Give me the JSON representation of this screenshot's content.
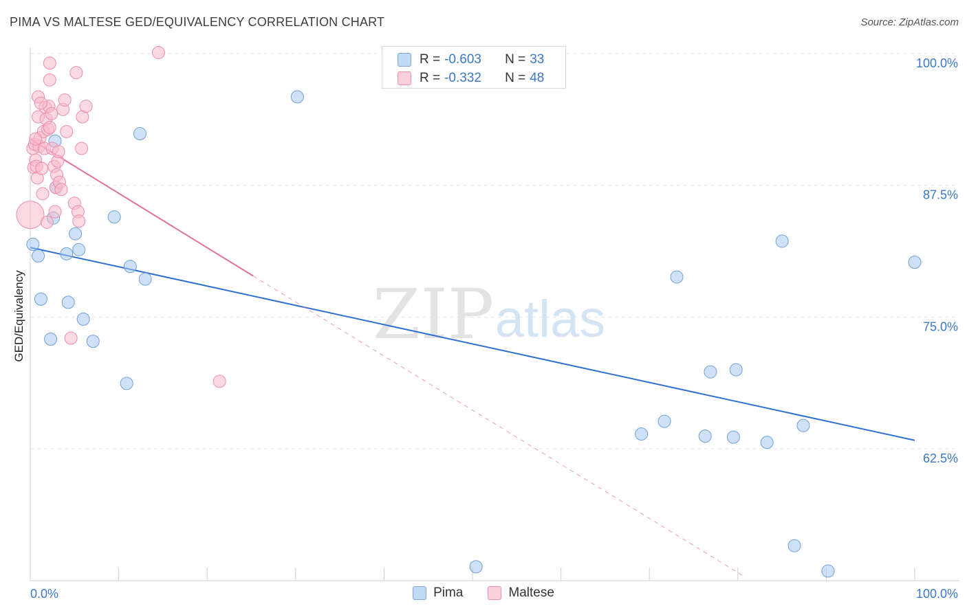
{
  "title": "PIMA VS MALTESE GED/EQUIVALENCY CORRELATION CHART",
  "source": "Source: ZipAtlas.com",
  "watermark": {
    "zip": "ZIP",
    "atlas": "atlas"
  },
  "stats": [
    {
      "r_label": "R = ",
      "r_value": "-0.603",
      "n_label": "N = ",
      "n_value": "33",
      "color": "#a8c8f0",
      "border": "#7aa6dd"
    },
    {
      "r_label": "R = ",
      "r_value": "-0.332",
      "n_label": "N = ",
      "n_value": "48",
      "color": "#f7b9cc",
      "border": "#ee8fac"
    }
  ],
  "legend": [
    {
      "label": "Pima",
      "color": "#a8c8f0",
      "border": "#7aa6dd"
    },
    {
      "label": "Maltese",
      "color": "#f7b9cc",
      "border": "#ee8fac"
    }
  ],
  "chart_data": {
    "type": "scatter",
    "title": "PIMA VS MALTESE GED/EQUIVALENCY CORRELATION CHART",
    "xlabel": "",
    "ylabel": "GED/Equivalency",
    "xlim": [
      0,
      100
    ],
    "ylim": [
      50,
      101.5
    ],
    "x_tick_labels": [
      "0.0%",
      "100.0%"
    ],
    "y_ticks": [
      62.5,
      75.0,
      87.5,
      100.0
    ],
    "y_tick_labels": [
      "62.5%",
      "75.0%",
      "87.5%",
      "100.0%"
    ],
    "grid": true,
    "legend_position": "bottom",
    "series": [
      {
        "name": "Pima",
        "color": "#a8c8f0",
        "stroke": "#6f9fd8",
        "line_color": "#2e6fd0",
        "trend": {
          "x": [
            0,
            100
          ],
          "y": [
            81.6,
            63.3
          ]
        },
        "points": [
          [
            0.3,
            81.9
          ],
          [
            0.9,
            80.8
          ],
          [
            1.2,
            76.7
          ],
          [
            2.3,
            72.9
          ],
          [
            2.6,
            84.4
          ],
          [
            2.9,
            87.3
          ],
          [
            2.8,
            91.7
          ],
          [
            4.1,
            81.0
          ],
          [
            4.3,
            76.4
          ],
          [
            5.1,
            82.9
          ],
          [
            5.5,
            81.4
          ],
          [
            6.0,
            74.8
          ],
          [
            7.1,
            72.7
          ],
          [
            9.5,
            84.5
          ],
          [
            10.9,
            68.7
          ],
          [
            11.3,
            79.8
          ],
          [
            12.4,
            92.4
          ],
          [
            13.0,
            78.6
          ],
          [
            30.2,
            95.9
          ],
          [
            50.4,
            51.3
          ],
          [
            69.1,
            63.9
          ],
          [
            71.7,
            65.1
          ],
          [
            73.1,
            78.8
          ],
          [
            76.3,
            63.7
          ],
          [
            76.9,
            69.8
          ],
          [
            79.5,
            63.6
          ],
          [
            79.8,
            70.0
          ],
          [
            83.3,
            63.1
          ],
          [
            85.0,
            82.2
          ],
          [
            86.4,
            53.3
          ],
          [
            87.4,
            64.7
          ],
          [
            90.2,
            50.9
          ],
          [
            100.0,
            80.2
          ]
        ]
      },
      {
        "name": "Maltese",
        "color": "#f7b9cc",
        "stroke": "#ea8eab",
        "line_color": "#e2709a",
        "trend": {
          "x": [
            0,
            25.2
          ],
          "y": [
            91.9,
            78.9
          ]
        },
        "trend_extension": {
          "x": [
            25.2,
            80.5
          ],
          "y": [
            78.9,
            50.5
          ]
        },
        "points": [
          [
            0.0,
            84.7
          ],
          [
            0.3,
            91.0
          ],
          [
            0.4,
            89.2
          ],
          [
            0.5,
            91.4
          ],
          [
            0.6,
            89.9
          ],
          [
            0.7,
            89.3
          ],
          [
            0.8,
            88.2
          ],
          [
            0.9,
            94.0
          ],
          [
            0.9,
            95.9
          ],
          [
            1.0,
            91.2
          ],
          [
            1.1,
            92.0
          ],
          [
            1.3,
            89.1
          ],
          [
            1.4,
            86.7
          ],
          [
            1.5,
            92.6
          ],
          [
            1.6,
            91.0
          ],
          [
            1.7,
            94.9
          ],
          [
            1.8,
            93.8
          ],
          [
            1.9,
            84.0
          ],
          [
            2.0,
            92.8
          ],
          [
            2.1,
            95.0
          ],
          [
            2.2,
            97.5
          ],
          [
            2.2,
            99.1
          ],
          [
            2.4,
            94.3
          ],
          [
            2.5,
            91.0
          ],
          [
            2.7,
            89.3
          ],
          [
            2.8,
            85.0
          ],
          [
            2.9,
            87.3
          ],
          [
            3.0,
            88.5
          ],
          [
            3.1,
            89.8
          ],
          [
            3.2,
            90.7
          ],
          [
            3.3,
            87.8
          ],
          [
            3.5,
            87.1
          ],
          [
            3.7,
            94.7
          ],
          [
            3.9,
            95.6
          ],
          [
            4.1,
            92.6
          ],
          [
            4.6,
            73.0
          ],
          [
            5.0,
            85.8
          ],
          [
            5.2,
            98.2
          ],
          [
            5.4,
            85.0
          ],
          [
            5.5,
            84.1
          ],
          [
            5.8,
            91.0
          ],
          [
            5.9,
            94.0
          ],
          [
            6.3,
            95.0
          ],
          [
            14.5,
            100.1
          ],
          [
            21.4,
            68.9
          ],
          [
            2.2,
            93.0
          ],
          [
            1.2,
            95.3
          ],
          [
            0.6,
            91.9
          ]
        ]
      }
    ]
  }
}
